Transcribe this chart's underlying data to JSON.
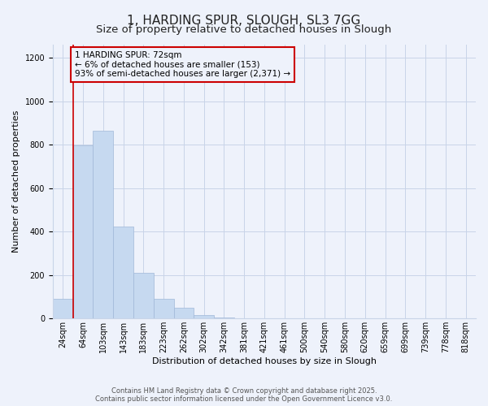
{
  "title": "1, HARDING SPUR, SLOUGH, SL3 7GG",
  "subtitle": "Size of property relative to detached houses in Slough",
  "xlabel": "Distribution of detached houses by size in Slough",
  "ylabel": "Number of detached properties",
  "bar_labels": [
    "24sqm",
    "64sqm",
    "103sqm",
    "143sqm",
    "183sqm",
    "223sqm",
    "262sqm",
    "302sqm",
    "342sqm",
    "381sqm",
    "421sqm",
    "461sqm",
    "500sqm",
    "540sqm",
    "580sqm",
    "620sqm",
    "659sqm",
    "699sqm",
    "739sqm",
    "778sqm",
    "818sqm"
  ],
  "bar_values": [
    90,
    795,
    865,
    425,
    210,
    90,
    50,
    17,
    5,
    0,
    0,
    0,
    0,
    0,
    2,
    0,
    0,
    0,
    0,
    0,
    2
  ],
  "bar_color": "#c6d9f0",
  "bar_edge_color": "#a0b8d8",
  "vline_x": 1,
  "vline_color": "#cc0000",
  "annotation_box_text": "1 HARDING SPUR: 72sqm\n← 6% of detached houses are smaller (153)\n93% of semi-detached houses are larger (2,371) →",
  "box_edge_color": "#cc0000",
  "ylim": [
    0,
    1260
  ],
  "yticks": [
    0,
    200,
    400,
    600,
    800,
    1000,
    1200
  ],
  "footer1": "Contains HM Land Registry data © Crown copyright and database right 2025.",
  "footer2": "Contains public sector information licensed under the Open Government Licence v3.0.",
  "bg_color": "#eef2fb",
  "grid_color": "#c8d4e8",
  "title_fontsize": 11,
  "subtitle_fontsize": 9.5,
  "label_fontsize": 8,
  "tick_fontsize": 7,
  "annot_fontsize": 7.5,
  "footer_fontsize": 6
}
